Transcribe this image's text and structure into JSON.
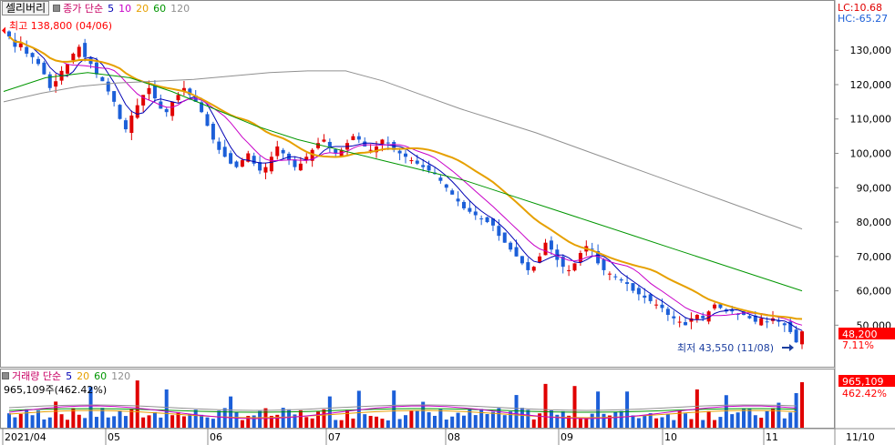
{
  "title_bar": {
    "stock_name": "셀리버리",
    "legend_prefix": "종가 단순",
    "ma_periods": [
      "5",
      "10",
      "20",
      "60",
      "120"
    ]
  },
  "colors": {
    "ma5": "#0000b4",
    "ma10": "#c800c8",
    "ma20": "#e6a000",
    "ma60": "#009600",
    "ma120": "#909090",
    "up": "#e00000",
    "down": "#1c5fd8",
    "accent": "#ff0000"
  },
  "price_axis": {
    "ticks": [
      "130,000",
      "120,000",
      "110,000",
      "100,000",
      "90,000",
      "80,000",
      "70,000",
      "60,000",
      "50,000"
    ],
    "lc": "LC:10.68",
    "hc": "HC:-65.27"
  },
  "annotations": {
    "high": "최고 138,800 (04/06)",
    "low": "최저 43,550 (11/08)"
  },
  "current": {
    "price": "48,200",
    "change_pct": "7.11%"
  },
  "volume_panel": {
    "legend_prefix": "거래량 단순",
    "ma_periods": [
      "5",
      "20",
      "60",
      "120"
    ],
    "value_text": "965,109주(462.42%)",
    "box_value": "965,109",
    "box_pct": "462.42%"
  },
  "date_axis": [
    "2021/04",
    "05",
    "06",
    "07",
    "08",
    "09",
    "10",
    "11"
  ],
  "date_axis_right": "11/10",
  "chart_data": {
    "type": "candlestick",
    "ylim": [
      40000,
      140000
    ],
    "close": [
      134000,
      131000,
      132000,
      129000,
      128000,
      126000,
      123000,
      119000,
      121000,
      124000,
      126000,
      129000,
      131000,
      128000,
      126000,
      123000,
      121000,
      118000,
      115000,
      110000,
      107000,
      111000,
      114000,
      117000,
      119000,
      116000,
      113000,
      112000,
      115000,
      117000,
      119000,
      117000,
      115000,
      112000,
      108000,
      104000,
      101000,
      99000,
      97000,
      96000,
      98000,
      100000,
      97000,
      95000,
      96000,
      99000,
      102000,
      100000,
      98000,
      96000,
      97000,
      99000,
      101000,
      103000,
      104000,
      102000,
      100000,
      101000,
      103000,
      105000,
      104000,
      102000,
      101000,
      102000,
      104000,
      103000,
      101000,
      100000,
      99000,
      98000,
      97000,
      96000,
      95000,
      94000,
      92000,
      90000,
      88000,
      86000,
      84000,
      83000,
      82000,
      81000,
      80000,
      79000,
      76000,
      74000,
      72000,
      70000,
      68000,
      66000,
      67000,
      70000,
      74000,
      72000,
      69000,
      67000,
      66000,
      68000,
      71000,
      73000,
      72000,
      68000,
      66000,
      65000,
      64000,
      63000,
      62000,
      60000,
      59000,
      58000,
      57000,
      56000,
      55000,
      53000,
      52000,
      51000,
      50000,
      52000,
      53000,
      52000,
      54000,
      56000,
      55000,
      54000,
      54000,
      53000,
      53000,
      52000,
      51000,
      52000,
      51000,
      52000,
      51000,
      50000,
      48000,
      45000,
      48200
    ],
    "volume_ma_periods": [
      "5",
      "20",
      "60",
      "120"
    ]
  }
}
